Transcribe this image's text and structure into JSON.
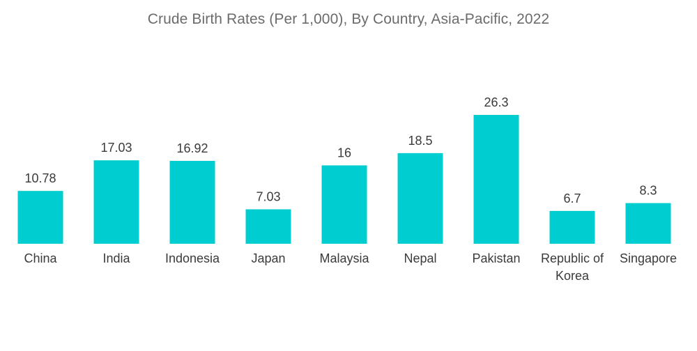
{
  "chart_data": {
    "type": "bar",
    "title": "Crude Birth Rates (Per 1,000), By Country, Asia-Pacific, 2022",
    "xlabel": "",
    "ylabel": "",
    "categories": [
      "China",
      "India",
      "Indonesia",
      "Japan",
      "Malaysia",
      "Nepal",
      "Pakistan",
      "Republic of Korea",
      "Singapore"
    ],
    "category_lines": [
      [
        "China"
      ],
      [
        "India"
      ],
      [
        "Indonesia"
      ],
      [
        "Japan"
      ],
      [
        "Malaysia"
      ],
      [
        "Nepal"
      ],
      [
        "Pakistan"
      ],
      [
        "Republic of",
        "Korea"
      ],
      [
        "Singapore"
      ]
    ],
    "values": [
      10.78,
      17.03,
      16.92,
      7.03,
      16,
      18.5,
      26.3,
      6.7,
      8.3
    ],
    "value_labels": [
      "10.78",
      "17.03",
      "16.92",
      "7.03",
      "16",
      "18.5",
      "26.3",
      "6.7",
      "8.3"
    ],
    "ylim": [
      0,
      26.3
    ],
    "grid": false,
    "legend": "none",
    "bar_color": "#00cdd0"
  }
}
